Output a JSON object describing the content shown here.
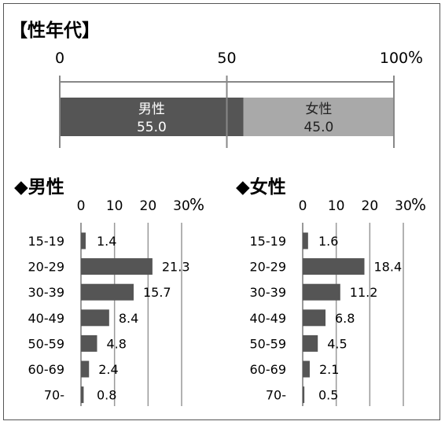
{
  "title": "【性年代】",
  "chart_data": [
    {
      "type": "bar",
      "stacked": true,
      "orientation": "horizontal",
      "xlim": [
        0,
        100
      ],
      "ticks": [
        "0",
        "50",
        "100"
      ],
      "unit": "%",
      "series": [
        {
          "name": "男性",
          "value": 55.0,
          "value_label": "55.0",
          "color": "#555555"
        },
        {
          "name": "女性",
          "value": 45.0,
          "value_label": "45.0",
          "color": "#a9a9a9"
        }
      ]
    },
    {
      "type": "bar",
      "orientation": "horizontal",
      "title": "◆男性",
      "xlim": [
        0,
        30
      ],
      "ticks": [
        "0",
        "10",
        "20",
        "30"
      ],
      "unit": "%",
      "color": "#555555",
      "categories": [
        "15-19",
        "20-29",
        "30-39",
        "40-49",
        "50-59",
        "60-69",
        "70-"
      ],
      "values": [
        1.4,
        21.3,
        15.7,
        8.4,
        4.8,
        2.4,
        0.8
      ],
      "value_labels": [
        "1.4",
        "21.3",
        "15.7",
        "8.4",
        "4.8",
        "2.4",
        "0.8"
      ]
    },
    {
      "type": "bar",
      "orientation": "horizontal",
      "title": "◆女性",
      "xlim": [
        0,
        30
      ],
      "ticks": [
        "0",
        "10",
        "20",
        "30"
      ],
      "unit": "%",
      "color": "#555555",
      "categories": [
        "15-19",
        "20-29",
        "30-39",
        "40-49",
        "50-59",
        "60-69",
        "70-"
      ],
      "values": [
        1.6,
        18.4,
        11.2,
        6.8,
        4.5,
        2.1,
        0.5
      ],
      "value_labels": [
        "1.6",
        "18.4",
        "11.2",
        "6.8",
        "4.5",
        "2.1",
        "0.5"
      ]
    }
  ]
}
